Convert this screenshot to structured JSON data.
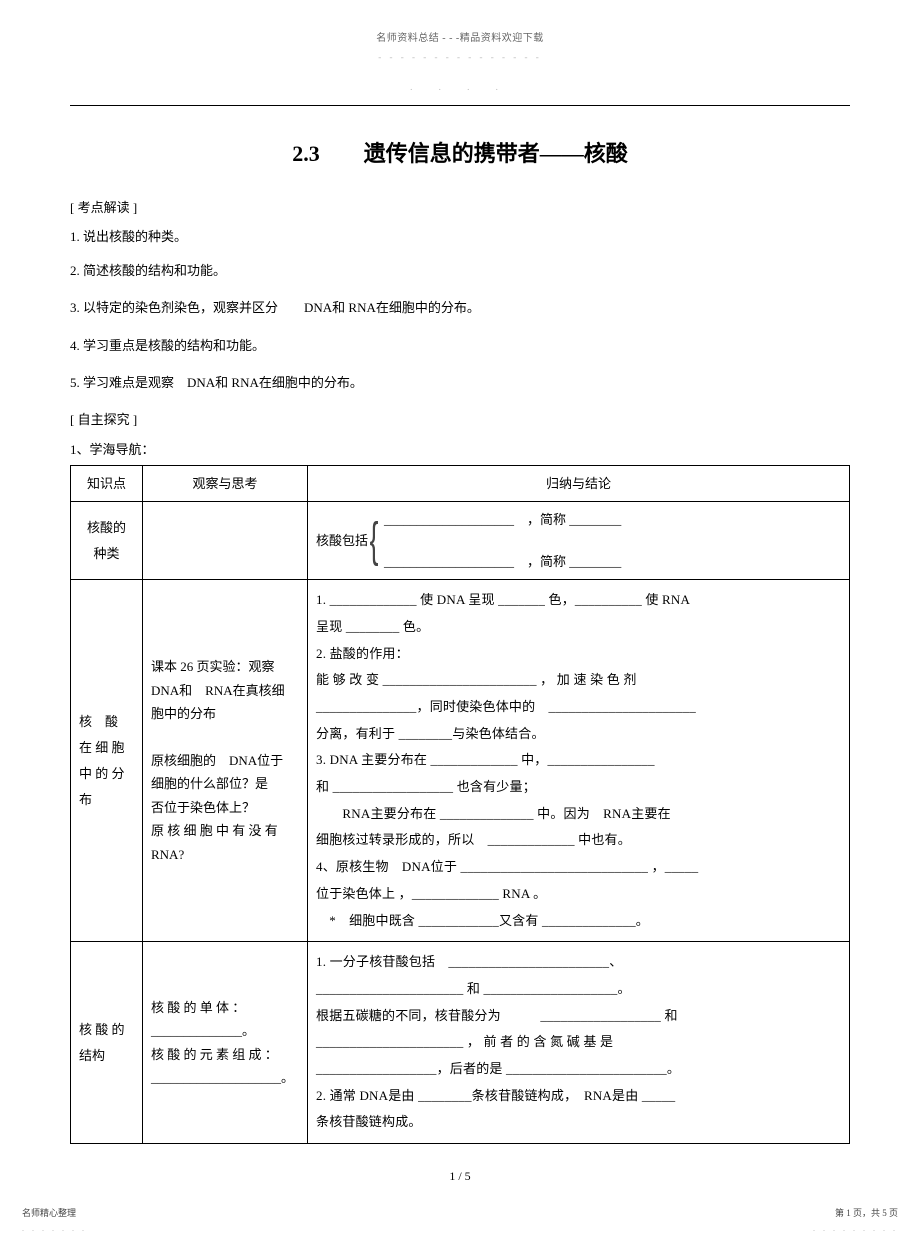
{
  "header": {
    "line1": "名师资料总结 - - -精品资料欢迎下载",
    "dots1": "- - - - - - - - - - - - - - -",
    "dots2": ".   .   .   ."
  },
  "title": "2.3　　遗传信息的携带者——核酸",
  "sections": {
    "kaodian": "[ 考点解读 ]",
    "k1": "1. 说出核酸的种类。",
    "k2": "2. 简述核酸的结构和功能。",
    "k3": "3. 以特定的染色剂染色，观察并区分　　DNA和 RNA在细胞中的分布。",
    "k4": "4. 学习重点是核酸的结构和功能。",
    "k5": "5. 学习难点是观察　DNA和 RNA在细胞中的分布。",
    "zizhu": "[ 自主探究 ]",
    "z1": "1、学海导航："
  },
  "table": {
    "head": {
      "c1": "知识点",
      "c2": "观察与思考",
      "c3": "归纳与结论"
    },
    "row1": {
      "k": "核酸的\n种类",
      "o": "",
      "c_prefix": "核酸包括",
      "c_line1": "____________________　，简称 ________",
      "c_line2": "____________________　，简称 ________"
    },
    "row2": {
      "k": "核　酸\n在 细 胞\n中 的 分\n布",
      "o": "课本 26 页实验：观察\nDNA和　RNA在真核细\n胞中的分布\n\n原核细胞的　DNA位于\n细胞的什么部位？是\n否位于染色体上？\n原 核 细 胞 中 有 没 有\nRNA?",
      "c1": "1. _____________ 使 DNA 呈现 _______ 色，__________ 使 RNA",
      "c2": "呈现 ________ 色。",
      "c3": "2. 盐酸的作用：",
      "c4": "能 够 改 变 _______________________ ， 加 速 染 色 剂",
      "c5": "_______________，同时使染色体中的　______________________",
      "c6": "分离，有利于 ________与染色体结合。",
      "c7": "3. DNA 主要分布在 _____________ 中，________________",
      "c8": "和 __________________ 也含有少量；",
      "c9": "　　RNA主要分布在 ______________ 中。因为　RNA主要在",
      "c10": "细胞核过转录形成的，所以　_____________ 中也有。",
      "c11": "4、原核生物　DNA位于 ____________________________ ，_____",
      "c12": "位于染色体上 ，_____________ RNA 。",
      "c13": "　*　细胞中既含 ____________又含有 ______________。"
    },
    "row3": {
      "k": "核 酸 的\n结构",
      "o": "核 酸 的 单 体 ：\n______________。\n核 酸 的 元 素 组 成 ：\n____________________。",
      "c1": "1. 一分子核苷酸包括　________________________、",
      "c2": "______________________ 和 ____________________。",
      "c3": "根据五碳糖的不同，核苷酸分为　　　__________________ 和",
      "c4": "______________________ ， 前 者 的 含 氮 碱 基 是",
      "c5": "__________________，后者的是 ________________________。",
      "c6": "2. 通常 DNA是由 ________条核苷酸链构成，　RNA是由 _____",
      "c7": "条核苷酸链构成。"
    }
  },
  "footer": {
    "page": "1 / 5",
    "bl_line1": "名师精心整理",
    "bl_dots": ". . . . . . .",
    "br_line1": "第 1 页，共 5 页",
    "br_dots": ". . . . . . . . ."
  }
}
